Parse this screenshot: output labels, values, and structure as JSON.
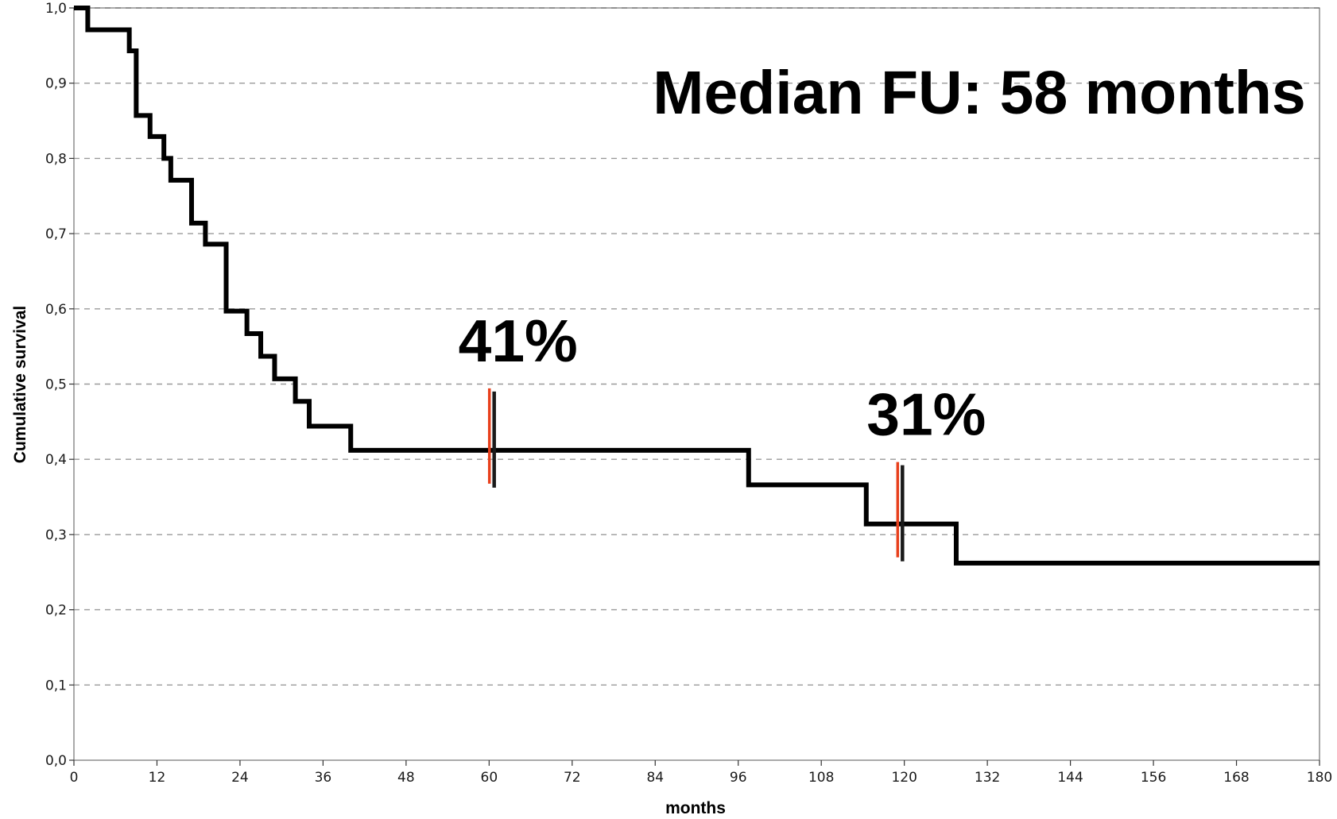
{
  "chart_data": {
    "type": "line",
    "subtype": "kaplan-meier-step",
    "xlabel": "months",
    "ylabel": "Cumulative survival",
    "xlim": [
      0,
      180
    ],
    "ylim": [
      0.0,
      1.0
    ],
    "x_ticks": [
      0,
      12,
      24,
      36,
      48,
      60,
      72,
      84,
      96,
      108,
      120,
      132,
      144,
      156,
      168,
      180
    ],
    "x_tick_labels": [
      "0",
      "12",
      "24",
      "36",
      "48",
      "60",
      "72",
      "84",
      "96",
      "108",
      "120",
      "132",
      "144",
      "156",
      "168",
      "180"
    ],
    "y_ticks": [
      0.0,
      0.1,
      0.2,
      0.3,
      0.4,
      0.5,
      0.6,
      0.7,
      0.8,
      0.9,
      1.0
    ],
    "y_tick_labels": [
      "0,0",
      "0,1",
      "0,2",
      "0,3",
      "0,4",
      "0,5",
      "0,6",
      "0,7",
      "0,8",
      "0,9",
      "1,0"
    ],
    "grid": "horizontal dashed",
    "line_color": "#000000",
    "marker_color": "#e8401c",
    "series": [
      {
        "steps": [
          [
            0,
            1.0
          ],
          [
            2,
            0.971
          ],
          [
            8,
            0.943
          ],
          [
            9,
            0.857
          ],
          [
            11,
            0.829
          ],
          [
            13,
            0.8
          ],
          [
            14,
            0.771
          ],
          [
            17,
            0.714
          ],
          [
            19,
            0.686
          ],
          [
            22,
            0.597
          ],
          [
            25,
            0.567
          ],
          [
            27,
            0.537
          ],
          [
            29,
            0.507
          ],
          [
            32,
            0.477
          ],
          [
            34,
            0.444
          ],
          [
            40,
            0.412
          ],
          [
            97.5,
            0.366
          ],
          [
            114.5,
            0.314
          ],
          [
            127.5,
            0.262
          ],
          [
            180,
            0.262
          ]
        ]
      }
    ],
    "markers": [
      {
        "x": 60.5,
        "y": 0.412,
        "label": "41%"
      },
      {
        "x": 119.5,
        "y": 0.314,
        "label": "31%"
      }
    ],
    "annotation": "Median FU: 58 months"
  }
}
